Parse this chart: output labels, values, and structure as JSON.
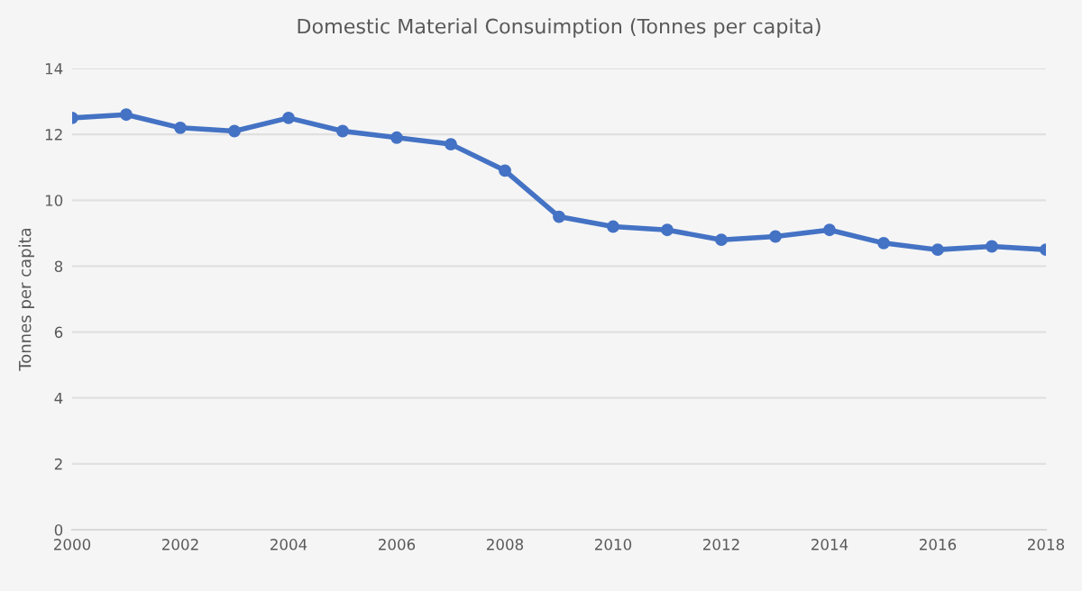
{
  "chart_data": {
    "type": "line",
    "title": "Domestic Material Consuimption (Tonnes per capita)",
    "ylabel": "Tonnes per capita",
    "x": [
      2000,
      2001,
      2002,
      2003,
      2004,
      2005,
      2006,
      2007,
      2008,
      2009,
      2010,
      2011,
      2012,
      2013,
      2014,
      2015,
      2016,
      2017,
      2018
    ],
    "series": [
      {
        "color": "#4472c4",
        "values": [
          12.5,
          12.6,
          12.2,
          12.1,
          12.5,
          12.1,
          11.9,
          11.7,
          10.9,
          9.5,
          9.2,
          9.1,
          8.8,
          8.9,
          9.1,
          8.7,
          8.5,
          8.6,
          8.5
        ]
      }
    ],
    "xlim": [
      2000,
      2018
    ],
    "xticks": [
      2000,
      2002,
      2004,
      2006,
      2008,
      2010,
      2012,
      2014,
      2016,
      2018
    ],
    "ylim": [
      0,
      14
    ],
    "yticks": [
      0,
      2,
      4,
      6,
      8,
      10,
      12,
      14
    ],
    "grid": "y",
    "marker": "circle",
    "line_style": "solid"
  }
}
